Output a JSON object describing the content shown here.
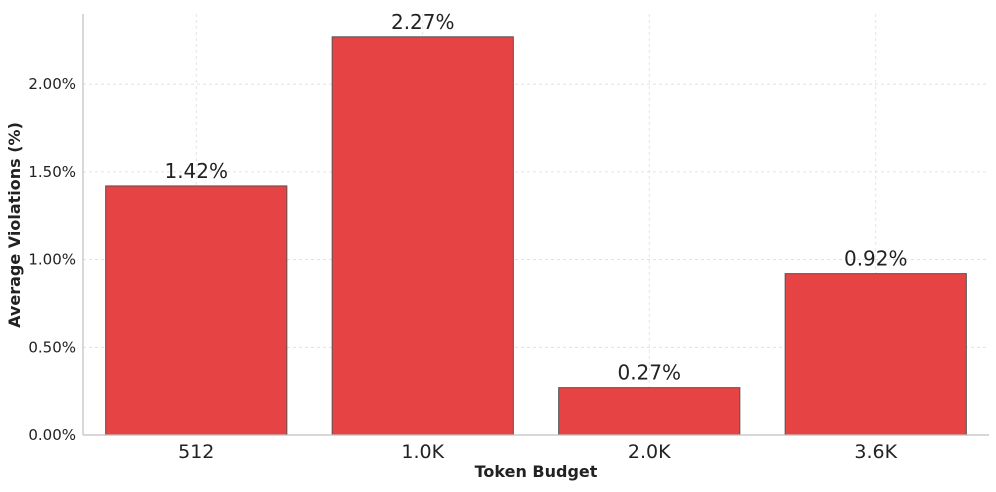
{
  "chart_data": {
    "type": "bar",
    "title": "",
    "xlabel": "Token Budget",
    "ylabel": "Average Violations (%)",
    "categories": [
      "512",
      "1.0K",
      "2.0K",
      "3.6K"
    ],
    "values": [
      1.42,
      2.27,
      0.27,
      0.92
    ],
    "value_labels": [
      "1.42%",
      "2.27%",
      "0.27%",
      "0.92%"
    ],
    "yticks": [
      0.0,
      0.5,
      1.0,
      1.5,
      2.0
    ],
    "ytick_labels": [
      "0.00%",
      "0.50%",
      "1.00%",
      "1.50%",
      "2.00%"
    ],
    "ylim": [
      0,
      2.4
    ],
    "grid": true,
    "colors": {
      "bar": "#e53a3a",
      "bar_edge": "#555555",
      "grid": "#dddddd",
      "axis": "#bfbfbf"
    }
  }
}
